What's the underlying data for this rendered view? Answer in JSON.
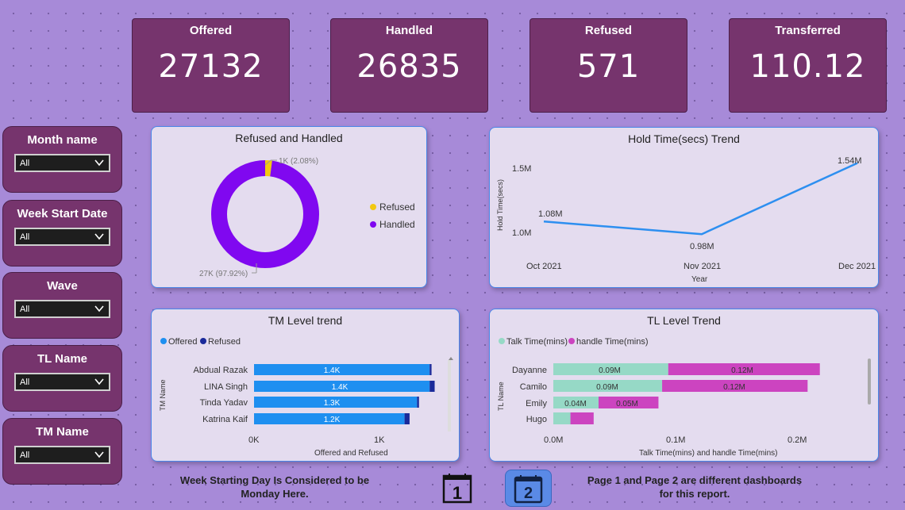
{
  "kpis": [
    {
      "label": "Offered",
      "value": "27132"
    },
    {
      "label": "Handled",
      "value": "26835"
    },
    {
      "label": "Refused",
      "value": "571"
    },
    {
      "label": "Transferred",
      "value": "110.12"
    }
  ],
  "slicers": [
    {
      "label": "Month name",
      "value": "All"
    },
    {
      "label": "Week Start Date",
      "value": "All"
    },
    {
      "label": "Wave",
      "value": "All"
    },
    {
      "label": "TL Name",
      "value": "All"
    },
    {
      "label": "TM Name",
      "value": "All"
    }
  ],
  "donut": {
    "title": "Refused and Handled",
    "legend": [
      "Refused",
      "Handled"
    ],
    "label_refused": "1K (2.08%)",
    "label_handled": "27K (97.92%)",
    "colors": {
      "refused": "#f2c811",
      "handled": "#8008f0"
    }
  },
  "hold": {
    "title": "Hold Time(secs) Trend",
    "ylabel": "Hold Time(secs)",
    "xlabel": "Year",
    "yticks": [
      "1.5M",
      "1.0M"
    ],
    "xticks": [
      "Oct 2021",
      "Nov 2021",
      "Dec 2021"
    ],
    "labels": [
      "1.08M",
      "0.98M",
      "1.54M"
    ],
    "color": "#2d8ff0"
  },
  "tm": {
    "title": "TM Level trend",
    "legend": [
      "Offered",
      "Refused"
    ],
    "ylabel": "TM Name",
    "xlabel": "Offered and Refused",
    "xticks": [
      "0K",
      "1K"
    ],
    "rows": [
      {
        "name": "Abdual Razak",
        "label": "1.4K"
      },
      {
        "name": "LINA Singh",
        "label": "1.4K"
      },
      {
        "name": "Tinda Yadav",
        "label": "1.3K"
      },
      {
        "name": "Katrina Kaif",
        "label": "1.2K"
      }
    ],
    "colors": {
      "offered": "#1e8ff0",
      "refused": "#1a2a9a"
    }
  },
  "tl": {
    "title": "TL Level Trend",
    "legend": [
      "Talk Time(mins)",
      "handle Time(mins)"
    ],
    "ylabel": "TL Name",
    "xlabel": "Talk Time(mins) and handle Time(mins)",
    "xticks": [
      "0.0M",
      "0.1M",
      "0.2M"
    ],
    "rows": [
      {
        "name": "Dayanne",
        "talk_label": "0.09M",
        "handle_label": "0.12M"
      },
      {
        "name": "Camilo",
        "talk_label": "0.09M",
        "handle_label": "0.12M"
      },
      {
        "name": "Emily",
        "talk_label": "0.04M",
        "handle_label": "0.05M"
      },
      {
        "name": "Hugo",
        "talk_label": "",
        "handle_label": ""
      }
    ],
    "colors": {
      "talk": "#96d9c6",
      "handle": "#cc44c0"
    }
  },
  "chart_data": [
    {
      "type": "pie",
      "title": "Refused and Handled",
      "categories": [
        "Refused",
        "Handled"
      ],
      "values": [
        571,
        26835
      ],
      "percentages": [
        2.08,
        97.92
      ]
    },
    {
      "type": "line",
      "title": "Hold Time(secs) Trend",
      "xlabel": "Year",
      "ylabel": "Hold Time(secs)",
      "x": [
        "Oct 2021",
        "Nov 2021",
        "Dec 2021"
      ],
      "series": [
        {
          "values": [
            1080000,
            980000,
            1540000
          ]
        }
      ]
    },
    {
      "type": "bar",
      "title": "TM Level trend",
      "xlabel": "Offered and Refused",
      "ylabel": "TM Name",
      "categories": [
        "Abdual Razak",
        "LINA Singh",
        "Tinda Yadav",
        "Katrina Kaif"
      ],
      "series": [
        {
          "name": "Offered",
          "values": [
            1400,
            1400,
            1300,
            1200
          ]
        },
        {
          "name": "Refused",
          "values": [
            15,
            40,
            15,
            40
          ]
        }
      ],
      "xlim": [
        0,
        1550
      ]
    },
    {
      "type": "bar",
      "title": "TL Level Trend",
      "xlabel": "Talk Time(mins) and handle Time(mins)",
      "ylabel": "TL Name",
      "categories": [
        "Dayanne",
        "Camilo",
        "Emily",
        "Hugo"
      ],
      "series": [
        {
          "name": "Talk Time(mins)",
          "values": [
            0.094,
            0.089,
            0.037,
            0.014
          ]
        },
        {
          "name": "handle Time(mins)",
          "values": [
            0.124,
            0.119,
            0.049,
            0.019
          ]
        }
      ],
      "xlim": [
        0,
        0.25
      ]
    }
  ],
  "footer": {
    "left_note_1": "Week Starting Day Is Considered to be",
    "left_note_2": "Monday Here.",
    "right_note_1": "Page 1 and Page 2 are different dashboards",
    "right_note_2": "for this report.",
    "page1": "1",
    "page2": "2"
  }
}
